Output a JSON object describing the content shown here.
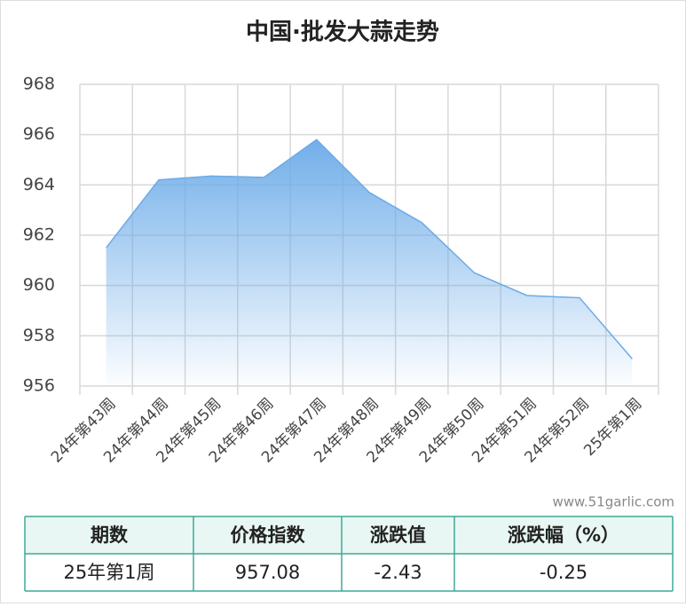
{
  "chart_data": {
    "type": "area",
    "title": "中国·批发大蒜走势",
    "categories": [
      "24年第43周",
      "24年第44周",
      "24年第45周",
      "24年第46周",
      "24年第47周",
      "24年第48周",
      "24年第49周",
      "24年第50周",
      "24年第51周",
      "24年第52周",
      "25年第1周"
    ],
    "values": [
      961.5,
      964.2,
      964.35,
      964.3,
      965.8,
      963.7,
      962.5,
      960.5,
      959.6,
      959.51,
      957.08
    ],
    "color": "#6aaae8",
    "ylim": [
      956,
      968
    ],
    "yticks": [
      956,
      958,
      960,
      962,
      964,
      966,
      968
    ],
    "grid": true
  },
  "watermark": "www.51garlic.com",
  "table": {
    "header": [
      "期数",
      "价格指数",
      "涨跌值",
      "涨跌幅（%）"
    ],
    "rows": [
      [
        "25年第1周",
        "957.08",
        "-2.43",
        "-0.25"
      ]
    ]
  }
}
